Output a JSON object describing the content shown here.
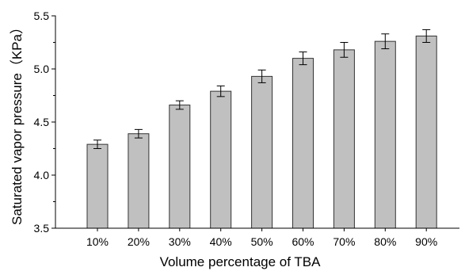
{
  "chart_data": {
    "type": "bar",
    "categories": [
      "10%",
      "20%",
      "30%",
      "40%",
      "50%",
      "60%",
      "70%",
      "80%",
      "90%"
    ],
    "values": [
      4.29,
      4.39,
      4.66,
      4.79,
      4.93,
      5.1,
      5.18,
      5.26,
      5.31
    ],
    "errors": [
      0.04,
      0.04,
      0.04,
      0.05,
      0.06,
      0.06,
      0.07,
      0.07,
      0.06
    ],
    "xlabel": "Volume percentage of TBA",
    "ylabel": "Saturated vapor pressure（KPa）",
    "ylim": [
      3.5,
      5.5
    ],
    "yticks": [
      "3.5",
      "4.0",
      "4.5",
      "5.0",
      "5.5"
    ],
    "grid": false,
    "colors": {
      "bar_fill": "#c0c0c0",
      "bar_stroke": "#333333",
      "axis": "#000000",
      "error_bar": "#000000"
    }
  }
}
